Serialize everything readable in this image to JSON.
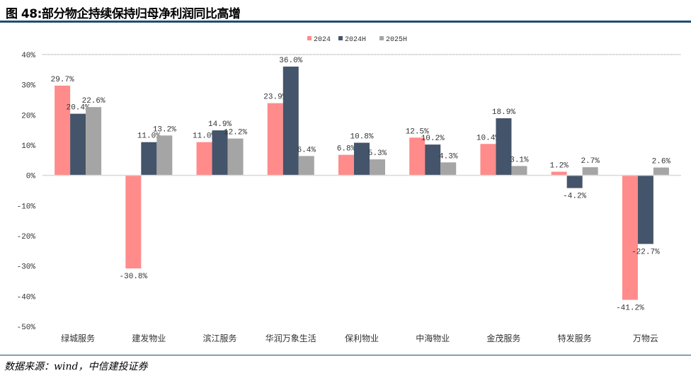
{
  "title": "图 48:部分物企持续保持归母净利润同比高增",
  "source": "数据来源：wind，中信建投证券",
  "chart_data": {
    "type": "bar",
    "title": "图 48:部分物企持续保持归母净利润同比高增",
    "categories": [
      "绿城服务",
      "建发物业",
      "滨江服务",
      "华润万象生活",
      "保利物业",
      "中海物业",
      "金茂服务",
      "特发服务",
      "万物云"
    ],
    "series": [
      {
        "name": "2024",
        "color": "#ff8b8b",
        "values": [
          29.7,
          -30.8,
          11.0,
          23.9,
          6.8,
          12.5,
          10.4,
          1.2,
          -41.2
        ]
      },
      {
        "name": "2024H",
        "color": "#44546a",
        "values": [
          20.4,
          11.0,
          14.9,
          36.0,
          10.8,
          10.2,
          18.9,
          -4.2,
          -22.7
        ]
      },
      {
        "name": "2025H",
        "color": "#a5a5a5",
        "values": [
          22.6,
          13.2,
          12.2,
          6.4,
          5.3,
          4.3,
          3.1,
          2.7,
          2.6
        ]
      }
    ],
    "yticks": [
      40,
      30,
      20,
      10,
      0,
      -10,
      -20,
      -30,
      -40,
      -50
    ],
    "ylim": [
      -50,
      40
    ],
    "ylabel": "",
    "xlabel": "",
    "legend": "top-center",
    "grid": false
  }
}
